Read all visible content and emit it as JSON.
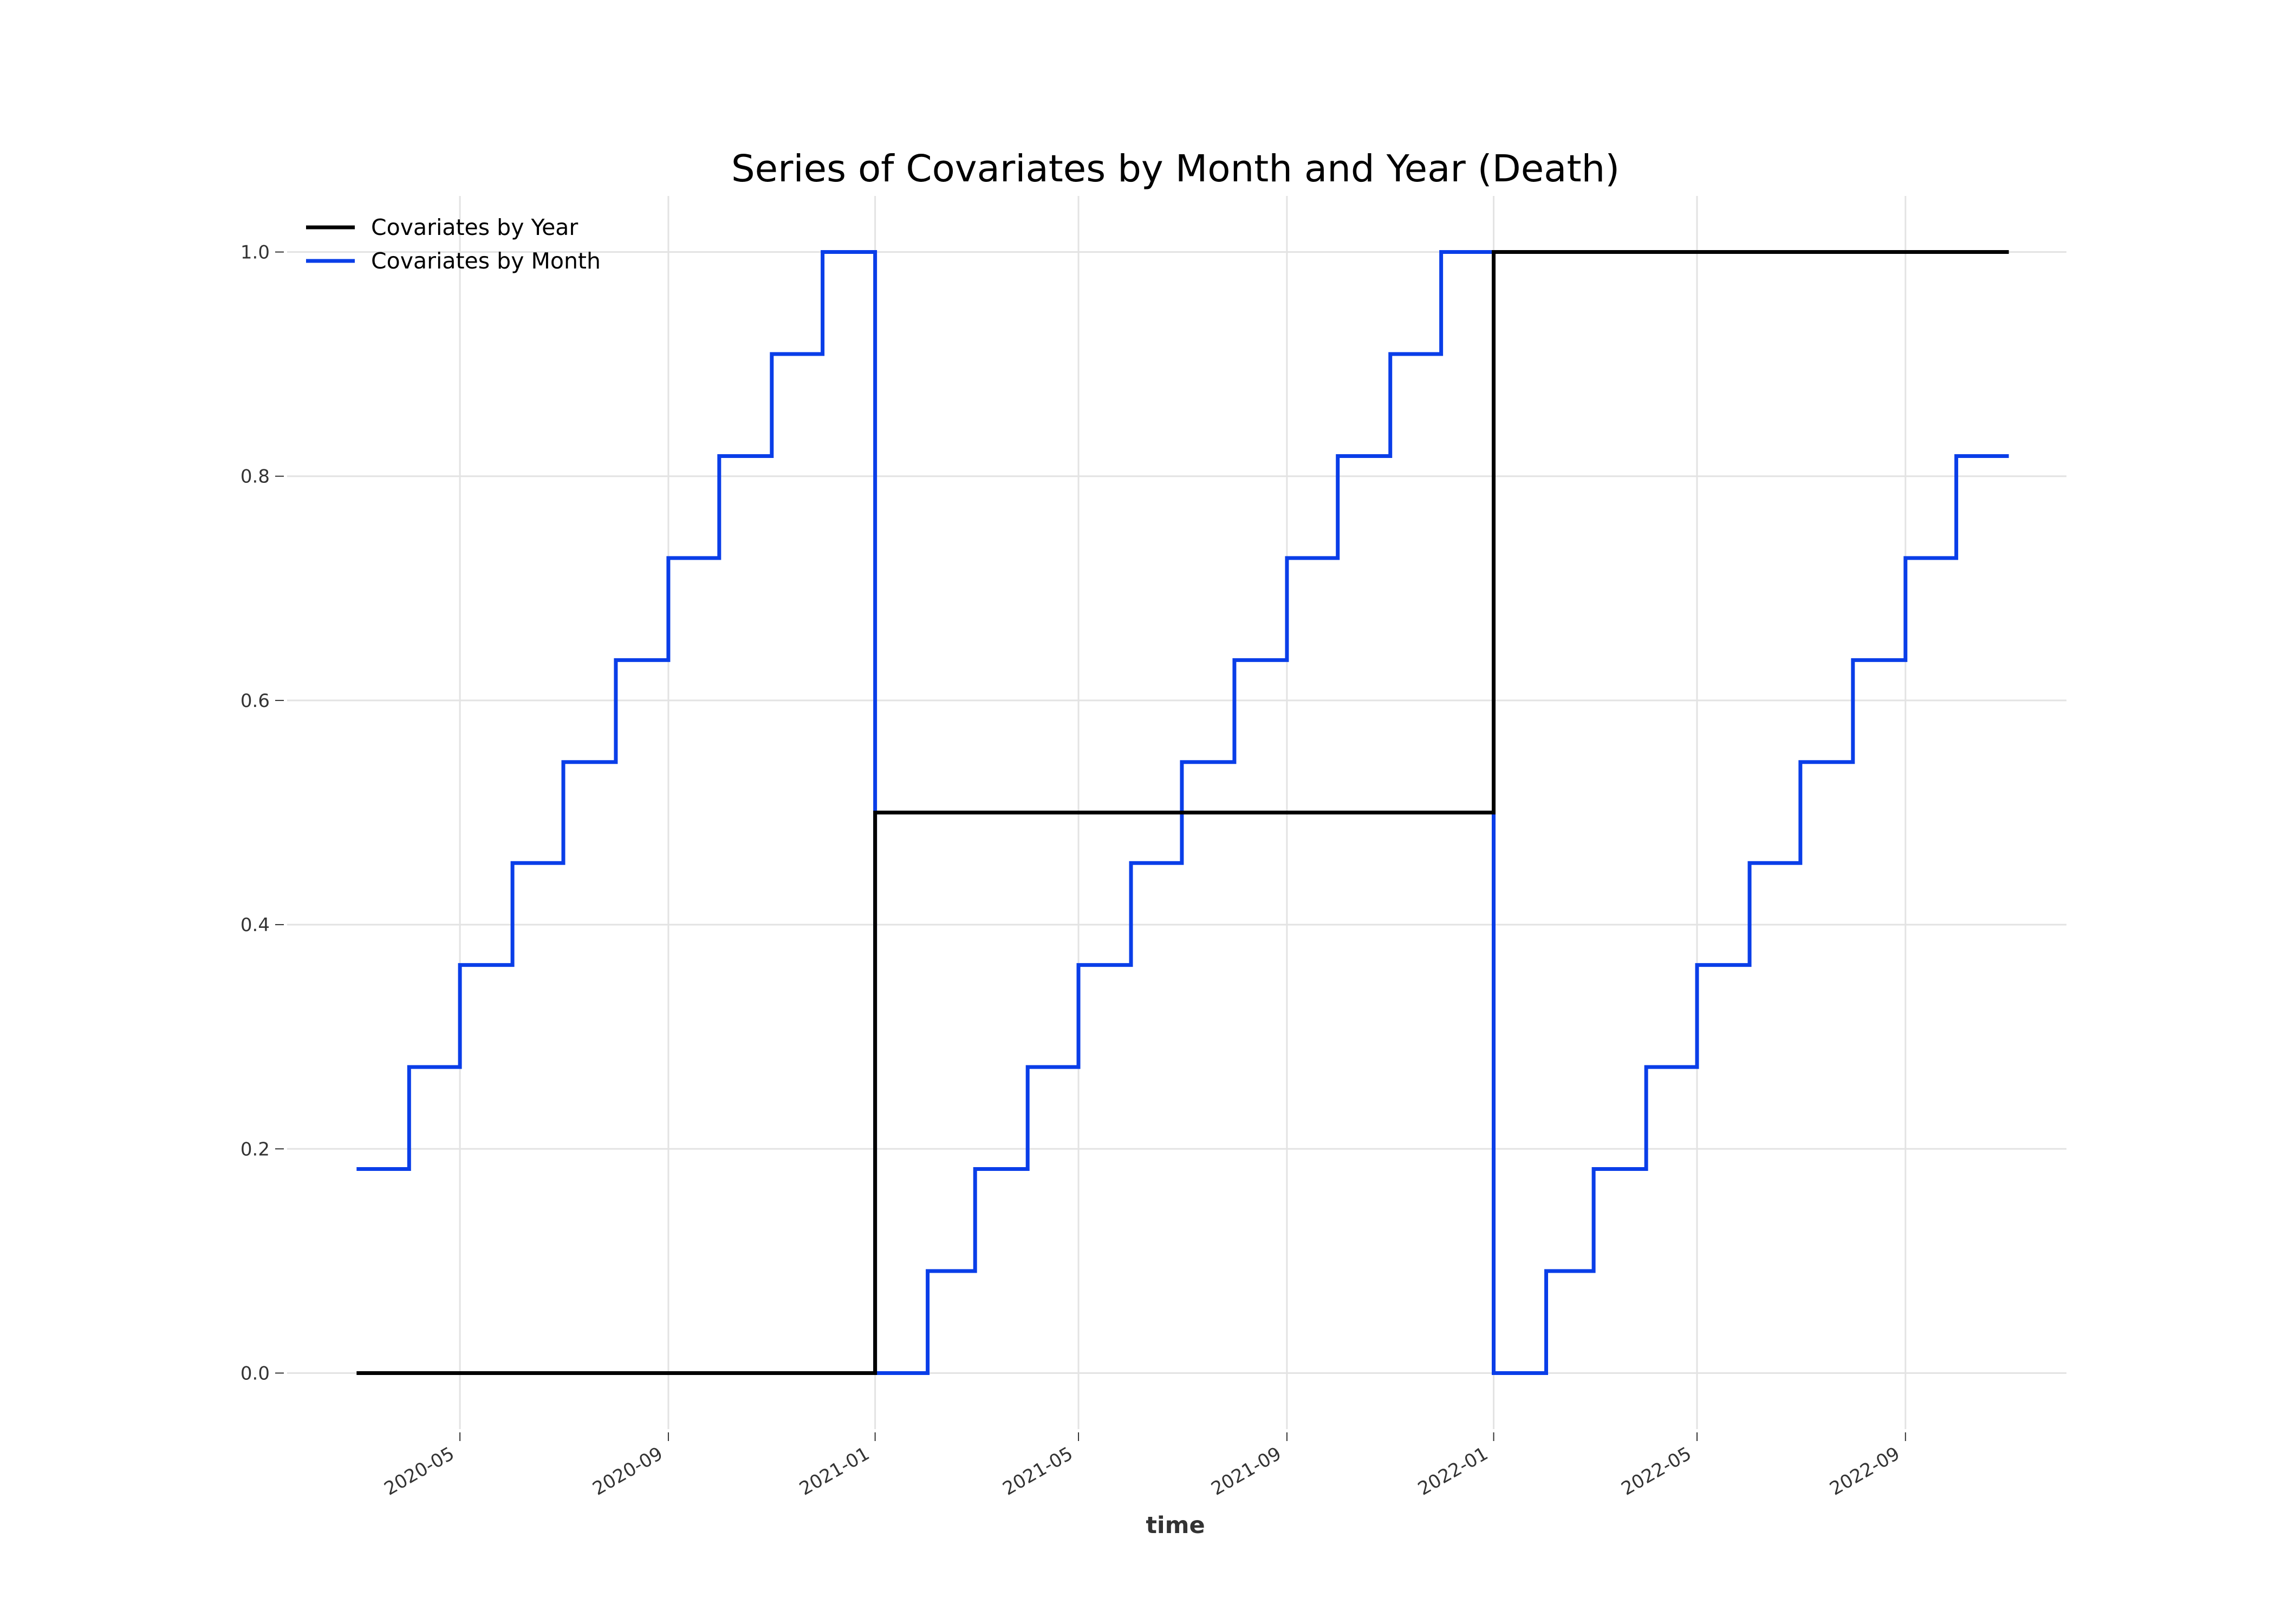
{
  "chart_data": {
    "type": "line",
    "title": "Series of Covariates by Month and Year (Death)",
    "xlabel": "time",
    "ylabel": "",
    "x_tick_labels": [
      "2020-05",
      "2020-09",
      "2021-01",
      "2021-05",
      "2021-09",
      "2022-01",
      "2022-05",
      "2022-09"
    ],
    "y_tick_labels": [
      "0.0",
      "0.2",
      "0.4",
      "0.6",
      "0.8",
      "1.0"
    ],
    "ylim": [
      -0.05,
      1.05
    ],
    "xlim": [
      "2020-01-20",
      "2022-12-05"
    ],
    "grid": true,
    "legend_position": "top-left",
    "series": [
      {
        "name": "Covariates by Year",
        "color": "#000000",
        "step": "post",
        "x": [
          "2020-03-01",
          "2021-01-01",
          "2022-01-01",
          "2022-11-01"
        ],
        "values": [
          0.0,
          0.5,
          1.0,
          1.0
        ]
      },
      {
        "name": "Covariates by Month",
        "color": "#0a3ee8",
        "step": "post",
        "x": [
          "2020-03-01",
          "2020-04-01",
          "2020-05-01",
          "2020-06-01",
          "2020-07-01",
          "2020-08-01",
          "2020-09-01",
          "2020-10-01",
          "2020-11-01",
          "2020-12-01",
          "2021-01-01",
          "2021-02-01",
          "2021-03-01",
          "2021-04-01",
          "2021-05-01",
          "2021-06-01",
          "2021-07-01",
          "2021-08-01",
          "2021-09-01",
          "2021-10-01",
          "2021-11-01",
          "2021-12-01",
          "2022-01-01",
          "2022-02-01",
          "2022-03-01",
          "2022-04-01",
          "2022-05-01",
          "2022-06-01",
          "2022-07-01",
          "2022-08-01",
          "2022-09-01",
          "2022-10-01",
          "2022-11-01"
        ],
        "values": [
          0.182,
          0.273,
          0.364,
          0.455,
          0.545,
          0.636,
          0.727,
          0.818,
          0.909,
          1.0,
          0.0,
          0.091,
          0.182,
          0.273,
          0.364,
          0.455,
          0.545,
          0.636,
          0.727,
          0.818,
          0.909,
          1.0,
          0.0,
          0.091,
          0.182,
          0.273,
          0.364,
          0.455,
          0.545,
          0.636,
          0.727,
          0.818,
          0.818
        ]
      }
    ]
  }
}
